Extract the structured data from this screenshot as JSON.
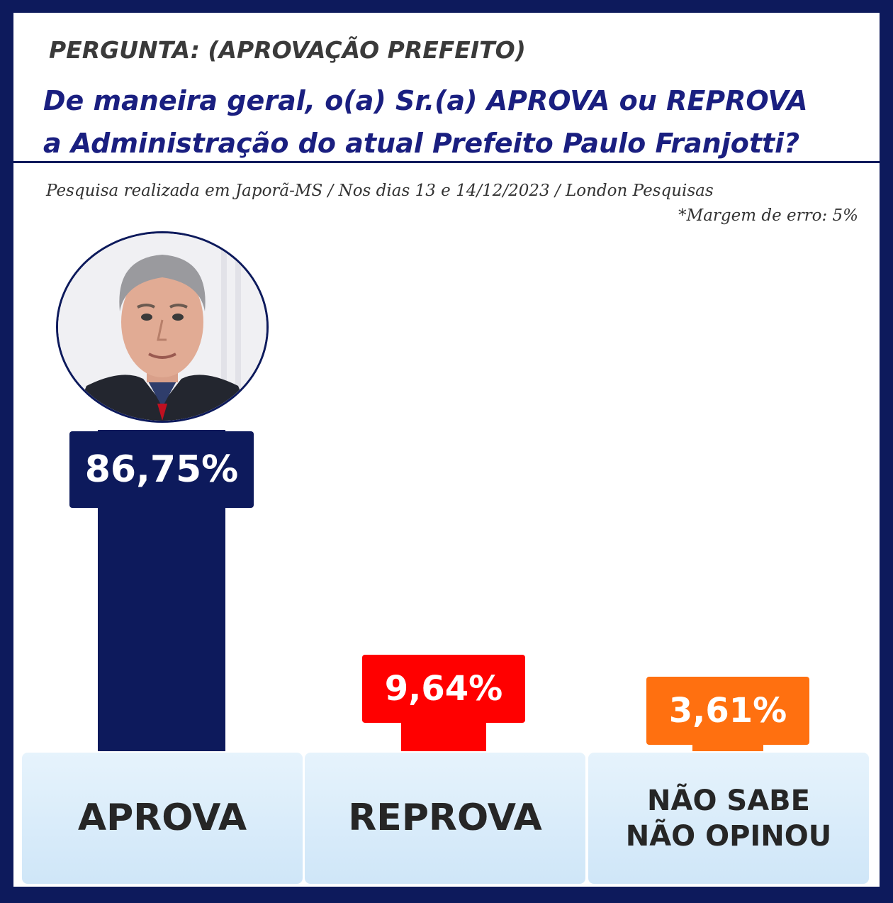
{
  "header": {
    "pergunta": "PERGUNTA: (APROVAÇÃO PREFEITO)",
    "question_line1": "De maneira geral, o(a) Sr.(a) APROVA ou REPROVA",
    "question_line2": "a Administração do atual Prefeito Paulo Franjotti?"
  },
  "source": "Pesquisa realizada em Japorã-MS / Nos dias 13 e 14/12/2023 / London Pesquisas",
  "margin_note": "*Margem de erro: 5%",
  "colors": {
    "aprova": "#0d1a5c",
    "reprova": "#ff0000",
    "nao_sabe": "#ff7010",
    "category_bg": "#d8ecfa"
  },
  "chart_data": {
    "type": "bar",
    "title": "",
    "xlabel": "",
    "ylabel": "",
    "categories": [
      "APROVA",
      "REPROVA",
      "NÃO SABE NÃO OPINOU"
    ],
    "category_lines": [
      [
        "APROVA"
      ],
      [
        "REPROVA"
      ],
      [
        "NÃO SABE",
        "NÃO OPINOU"
      ]
    ],
    "values": [
      86.75,
      9.64,
      3.61
    ],
    "value_labels": [
      "86,75%",
      "9,64%",
      "3,61%"
    ],
    "unit": "%",
    "grid": false
  }
}
